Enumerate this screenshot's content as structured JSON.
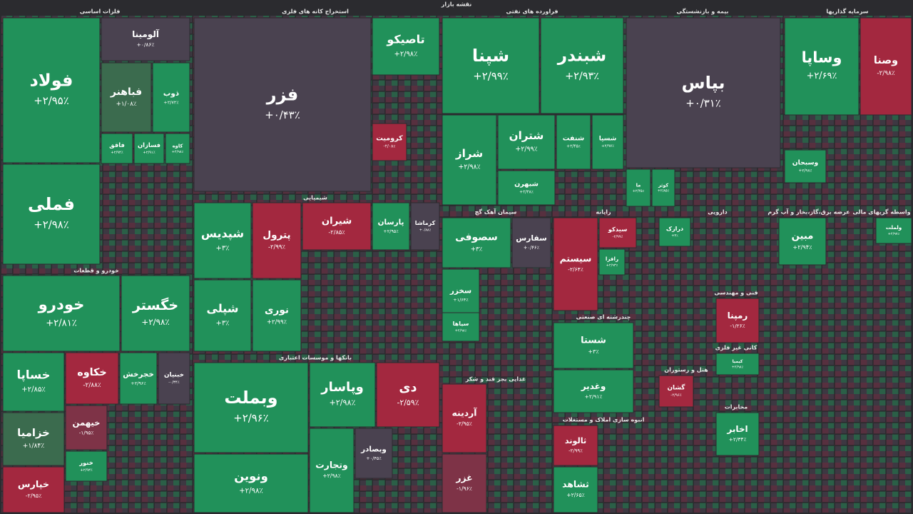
{
  "title": "نقشه بازار",
  "sectors": [
    {
      "name": "فلزات اساسی",
      "tiles": [
        {
          "name": "فولاد",
          "change": "+۲/۹۵٪",
          "color": "#21915a"
        },
        {
          "name": "فملی",
          "change": "+۲/۹۸٪",
          "color": "#21915a"
        },
        {
          "name": "آلومینا",
          "change": "+۰/۸۶٪",
          "color": "#4a4250"
        },
        {
          "name": "فباهنر",
          "change": "+۱/۰۸٪",
          "color": "#3b6b4e"
        },
        {
          "name": "ذوب",
          "change": "+۲/۷۲٪",
          "color": "#21915a"
        },
        {
          "name": "فاقق",
          "change": "+۲/۹۴٪",
          "color": "#21915a"
        },
        {
          "name": "فسازان",
          "change": "+۲/۹۱٪",
          "color": "#21915a"
        },
        {
          "name": "کاوه",
          "change": "+۲/۹۸٪",
          "color": "#21915a"
        }
      ]
    },
    {
      "name": "خودرو و قطعات",
      "tiles": [
        {
          "name": "خودرو",
          "change": "+۲/۸۱٪",
          "color": "#21915a"
        },
        {
          "name": "خگستر",
          "change": "+۲/۹۸٪",
          "color": "#21915a"
        },
        {
          "name": "خساپا",
          "change": "+۲/۸۵٪",
          "color": "#21915a"
        },
        {
          "name": "خکاوه",
          "change": "-۲/۸۸٪",
          "color": "#a3283f"
        },
        {
          "name": "خجرخش",
          "change": "+۲/۹۶٪",
          "color": "#21915a"
        },
        {
          "name": "خبنیان",
          "change": "-۰/۳۴٪",
          "color": "#4a4250"
        },
        {
          "name": "خزامیا",
          "change": "+۱/۸۴٪",
          "color": "#3b6b4e"
        },
        {
          "name": "خیهمن",
          "change": "-۱/۹۵٪",
          "color": "#7e3347"
        },
        {
          "name": "خنور",
          "change": "+۲/۹۳٪",
          "color": "#21915a"
        },
        {
          "name": "خپارس",
          "change": "-۲/۹۵٪",
          "color": "#a3283f"
        }
      ]
    },
    {
      "name": "استخراج کانه های فلزی",
      "tiles": [
        {
          "name": "فزر",
          "change": "+۰/۴۳٪",
          "color": "#4a4250"
        },
        {
          "name": "تاصیکو",
          "change": "+۲/۹۸٪",
          "color": "#21915a"
        },
        {
          "name": "کرومیت",
          "change": "-۲/۰۸٪",
          "color": "#a3283f"
        }
      ]
    },
    {
      "name": "شیمیایی",
      "tiles": [
        {
          "name": "شپدیس",
          "change": "+۳٪",
          "color": "#21915a"
        },
        {
          "name": "شپلی",
          "change": "+۳٪",
          "color": "#21915a"
        },
        {
          "name": "پترول",
          "change": "-۲/۹۹٪",
          "color": "#a3283f"
        },
        {
          "name": "نوری",
          "change": "+۲/۹۹٪",
          "color": "#21915a"
        },
        {
          "name": "شیران",
          "change": "-۲/۸۵٪",
          "color": "#a3283f"
        },
        {
          "name": "پارسان",
          "change": "+۲/۹۵٪",
          "color": "#21915a"
        },
        {
          "name": "کرماشا",
          "change": "+۰/۸۸٪",
          "color": "#4a4250"
        }
      ]
    },
    {
      "name": "بانکها و موسسات اعتباری",
      "tiles": [
        {
          "name": "وبملت",
          "change": "+۲/۹۶٪",
          "color": "#21915a"
        },
        {
          "name": "ونوین",
          "change": "+۲/۹۸٪",
          "color": "#21915a"
        },
        {
          "name": "وپاسار",
          "change": "+۲/۹۸٪",
          "color": "#21915a"
        },
        {
          "name": "دی",
          "change": "-۲/۵۹٪",
          "color": "#a3283f"
        },
        {
          "name": "وتجارت",
          "change": "+۲/۹۸٪",
          "color": "#21915a"
        },
        {
          "name": "وبصادر",
          "change": "+۰/۴۵٪",
          "color": "#4a4250"
        }
      ]
    },
    {
      "name": "فراورده های نفتی",
      "tiles": [
        {
          "name": "شپنا",
          "change": "+۲/۹۹٪",
          "color": "#21915a"
        },
        {
          "name": "شبندر",
          "change": "+۲/۹۳٪",
          "color": "#21915a"
        },
        {
          "name": "شراز",
          "change": "+۲/۹۸٪",
          "color": "#21915a"
        },
        {
          "name": "شتران",
          "change": "+۲/۹۹٪",
          "color": "#21915a"
        },
        {
          "name": "شنفت",
          "change": "+۲/۴۵٪",
          "color": "#21915a"
        },
        {
          "name": "شسپا",
          "change": "+۲/۹۷٪",
          "color": "#21915a"
        },
        {
          "name": "شبهرن",
          "change": "+۲/۳۸٪",
          "color": "#21915a"
        }
      ]
    },
    {
      "name": "بیمه و بازنشستگی",
      "tiles": [
        {
          "name": "بپاس",
          "change": "+۰/۳۱٪",
          "color": "#4a4250"
        },
        {
          "name": "ما",
          "change": "+۲/۴۵٪",
          "color": "#21915a"
        },
        {
          "name": "کوثر",
          "change": "+۲/۸۵٪",
          "color": "#21915a"
        }
      ]
    },
    {
      "name": "سرمایه گذاریها",
      "tiles": [
        {
          "name": "وساپا",
          "change": "+۲/۶۹٪",
          "color": "#21915a"
        },
        {
          "name": "وصنا",
          "change": "-۲/۹۸٪",
          "color": "#a3283f"
        },
        {
          "name": "وسبحان",
          "change": "+۲/۹۸٪",
          "color": "#21915a"
        }
      ]
    },
    {
      "name": "سیمان آهک گچ",
      "tiles": [
        {
          "name": "سصوفی",
          "change": "+۳٪",
          "color": "#21915a"
        },
        {
          "name": "سفارس",
          "change": "+۰/۴۶٪",
          "color": "#4a4250"
        },
        {
          "name": "سخزر",
          "change": "+۱/۶۴٪",
          "color": "#21915a"
        },
        {
          "name": "سیاها",
          "change": "+۲/۹۸٪",
          "color": "#21915a"
        }
      ]
    },
    {
      "name": "رایانه",
      "tiles": [
        {
          "name": "سیستم",
          "change": "-۲/۶۴٪",
          "color": "#a3283f"
        },
        {
          "name": "سیدکو",
          "change": "-۲/۹۹٪",
          "color": "#a3283f"
        },
        {
          "name": "رافزا",
          "change": "+۲/۹۳٪",
          "color": "#21915a"
        }
      ]
    },
    {
      "name": "چندرشته ای صنعتی",
      "tiles": [
        {
          "name": "شستا",
          "change": "+۳٪",
          "color": "#21915a"
        },
        {
          "name": "وغدیر",
          "change": "+۲/۹۱٪",
          "color": "#21915a"
        }
      ]
    },
    {
      "name": "انبوه سازی املاک و مستغلات",
      "tiles": [
        {
          "name": "ثالوند",
          "change": "-۲/۹۹٪",
          "color": "#a3283f"
        },
        {
          "name": "ثشاهد",
          "change": "+۲/۶۵٪",
          "color": "#21915a"
        }
      ]
    },
    {
      "name": "غذایی بجز قند و شکر",
      "tiles": [
        {
          "name": "آردینه",
          "change": "-۲/۹۵٪",
          "color": "#a3283f"
        },
        {
          "name": "غزر",
          "change": "-۱/۹۶٪",
          "color": "#7e3347"
        }
      ]
    },
    {
      "name": "دارویی",
      "tiles": [
        {
          "name": "درازک",
          "change": "+۳٪",
          "color": "#21915a"
        }
      ]
    },
    {
      "name": "عرضه برق،گاز،بخار و آب گرم",
      "tiles": [
        {
          "name": "مبین",
          "change": "+۲/۹۴٪",
          "color": "#21915a"
        }
      ]
    },
    {
      "name": "فنی و مهندسی",
      "tiles": [
        {
          "name": "رمپنا",
          "change": "-۱/۲۶٪",
          "color": "#a3283f"
        }
      ]
    },
    {
      "name": "مخابرات",
      "tiles": [
        {
          "name": "اخابر",
          "change": "+۲/۳۴٪",
          "color": "#21915a"
        }
      ]
    },
    {
      "name": "هتل و رستوران",
      "tiles": [
        {
          "name": "گشان",
          "change": "-۲/۹۶٪",
          "color": "#a3283f"
        }
      ]
    },
    {
      "name": "کانی غیر فلزی",
      "tiles": [
        {
          "name": "کیمیا",
          "change": "+۲/۹۸٪",
          "color": "#21915a"
        }
      ]
    },
    {
      "name": "واسطه گریهای مالی",
      "tiles": [
        {
          "name": "ولملت",
          "change": "+۲/۹۷٪",
          "color": "#21915a"
        }
      ]
    }
  ]
}
